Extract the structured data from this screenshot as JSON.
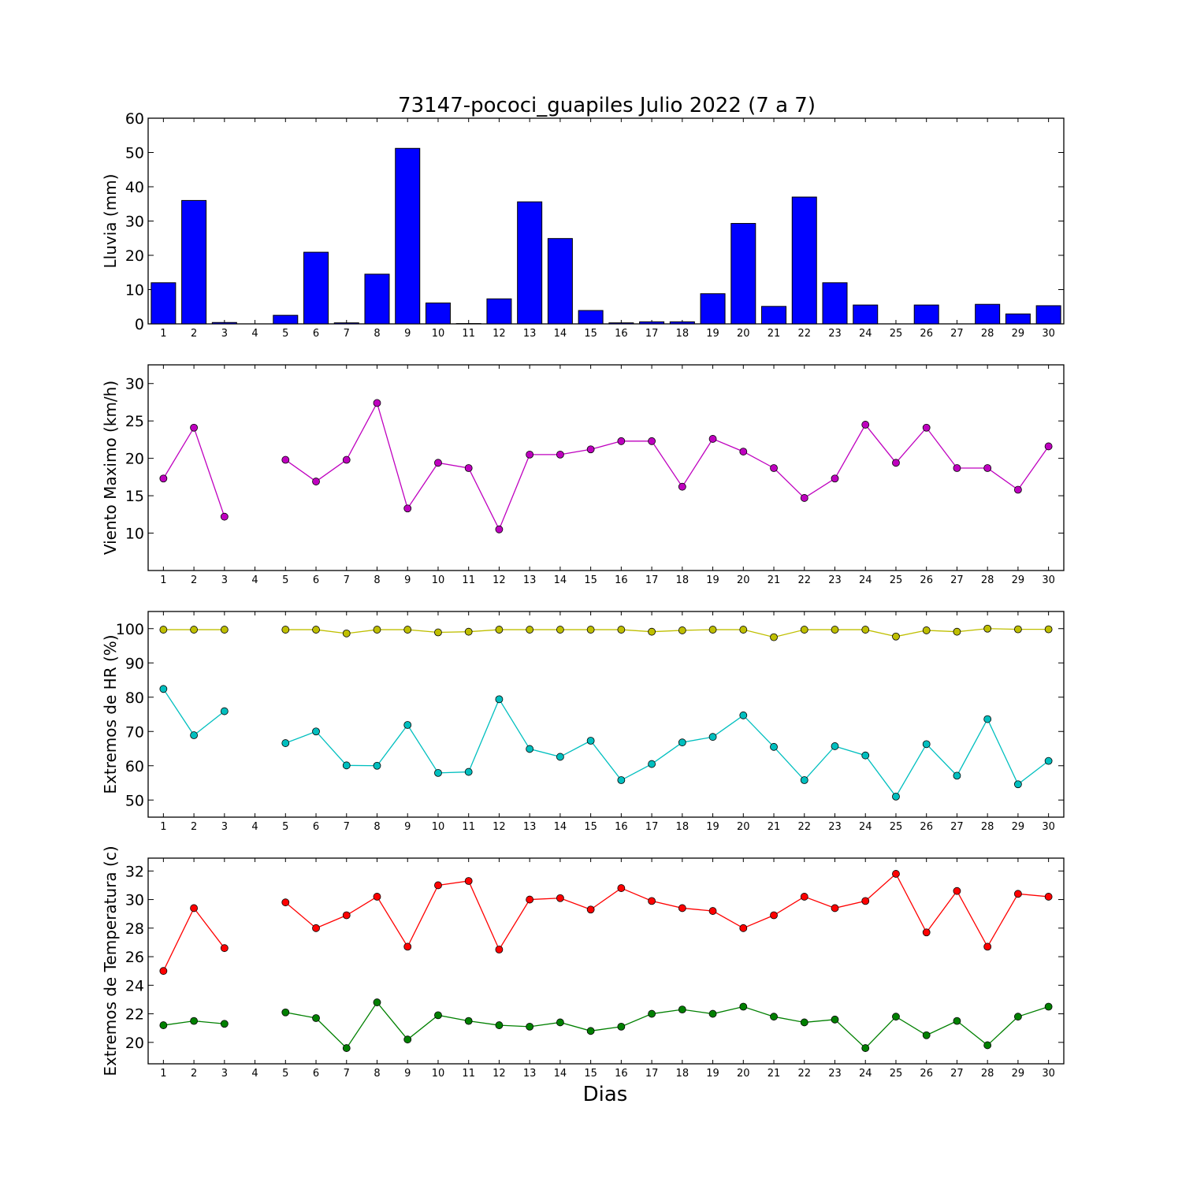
{
  "title": "73147-pococi_guapiles Julio 2022  (7 a 7)",
  "xlabel": "Dias",
  "days": [
    1,
    2,
    3,
    4,
    5,
    6,
    7,
    8,
    9,
    10,
    11,
    12,
    13,
    14,
    15,
    16,
    17,
    18,
    19,
    20,
    21,
    22,
    23,
    24,
    25,
    26,
    27,
    28,
    29,
    30
  ],
  "chart_data": [
    {
      "type": "bar",
      "ylabel": "Lluvia (mm)",
      "ylim": [
        0,
        60
      ],
      "yticks": [
        0,
        10,
        20,
        30,
        40,
        50,
        60
      ],
      "series": [
        {
          "color": "#0000ff",
          "values": [
            12.0,
            36.0,
            0.4,
            0,
            2.5,
            20.9,
            0.3,
            14.5,
            51.2,
            6.1,
            0.1,
            7.3,
            35.6,
            24.9,
            3.9,
            0.3,
            0.6,
            0.6,
            8.8,
            29.3,
            5.1,
            37.0,
            12.0,
            5.5,
            0,
            5.5,
            0,
            5.7,
            2.9,
            5.3
          ]
        }
      ]
    },
    {
      "type": "line",
      "ylabel": "Viento Maximo (km/h)",
      "ylim": [
        5,
        32.5
      ],
      "yticks": [
        10,
        15,
        20,
        25,
        30
      ],
      "series": [
        {
          "color": "#bf00bf",
          "values": [
            17.3,
            24.1,
            12.2,
            null,
            19.8,
            16.9,
            19.8,
            27.4,
            13.3,
            19.4,
            18.7,
            10.5,
            20.5,
            20.5,
            21.2,
            22.3,
            22.3,
            16.2,
            22.6,
            20.9,
            18.7,
            14.7,
            17.3,
            24.5,
            19.4,
            24.1,
            18.7,
            18.7,
            15.8,
            21.6
          ]
        }
      ]
    },
    {
      "type": "line",
      "ylabel": "Extremos de HR (%)",
      "ylim": [
        45,
        105
      ],
      "yticks": [
        50,
        60,
        70,
        80,
        90,
        100
      ],
      "series": [
        {
          "color": "#bfbf00",
          "values": [
            99.7,
            99.7,
            99.7,
            null,
            99.7,
            99.7,
            98.6,
            99.7,
            99.7,
            98.9,
            99.1,
            99.7,
            99.7,
            99.7,
            99.7,
            99.7,
            99.1,
            99.5,
            99.7,
            99.7,
            97.5,
            99.7,
            99.7,
            99.7,
            97.7,
            99.5,
            99.1,
            100.0,
            99.8,
            99.8
          ]
        },
        {
          "color": "#00bfbf",
          "values": [
            82.4,
            68.9,
            75.9,
            null,
            66.6,
            70.0,
            60.1,
            60.0,
            71.9,
            57.9,
            58.2,
            79.4,
            64.9,
            62.6,
            67.3,
            55.8,
            60.5,
            66.8,
            68.4,
            74.7,
            65.5,
            55.8,
            65.7,
            63.0,
            51.0,
            66.3,
            57.1,
            73.6,
            54.6,
            61.4
          ]
        }
      ]
    },
    {
      "type": "line",
      "ylabel": "Extremos de Temperatura (c)",
      "ylim": [
        18.5,
        32.9
      ],
      "yticks": [
        20,
        22,
        24,
        26,
        28,
        30,
        32
      ],
      "series": [
        {
          "color": "#ff0000",
          "values": [
            25.0,
            29.4,
            26.6,
            null,
            29.8,
            28.0,
            28.9,
            30.2,
            26.7,
            31.0,
            31.3,
            26.5,
            30.0,
            30.1,
            29.3,
            30.8,
            29.9,
            29.4,
            29.2,
            28.0,
            28.9,
            30.2,
            29.4,
            29.9,
            31.8,
            27.7,
            30.6,
            26.7,
            30.4,
            30.2
          ]
        },
        {
          "color": "#008000",
          "values": [
            21.2,
            21.5,
            21.3,
            null,
            22.1,
            21.7,
            19.6,
            22.8,
            20.2,
            21.9,
            21.5,
            21.2,
            21.1,
            21.4,
            20.8,
            21.1,
            22.0,
            22.3,
            22.0,
            22.5,
            21.8,
            21.4,
            21.6,
            19.6,
            21.8,
            20.5,
            21.5,
            19.8,
            21.8,
            22.5
          ]
        }
      ]
    }
  ]
}
